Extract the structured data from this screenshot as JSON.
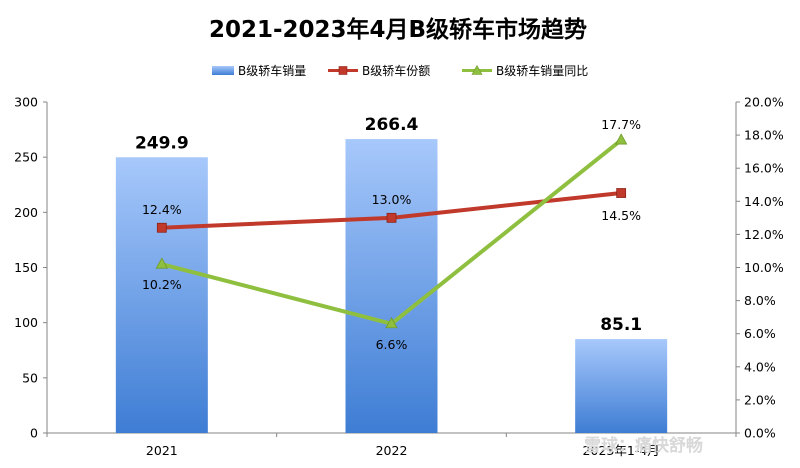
{
  "chart_data": {
    "type": "bar",
    "title": "2021-2023年4月B级轿车市场趋势",
    "categories": [
      "2021",
      "2022",
      "2023年1-4月"
    ],
    "series": [
      {
        "name": "B级轿车销量",
        "type": "bar",
        "axis": "left",
        "values": [
          249.9,
          266.4,
          85.1
        ],
        "labels": [
          "249.9",
          "266.4",
          "85.1"
        ],
        "color": "#5b8fe0"
      },
      {
        "name": "B级轿车份额",
        "type": "line",
        "axis": "right",
        "values": [
          12.4,
          13.0,
          14.5
        ],
        "labels": [
          "12.4%",
          "13.0%",
          "14.5%"
        ],
        "color": "#c0392b"
      },
      {
        "name": "B级轿车销量同比",
        "type": "line",
        "axis": "right",
        "values": [
          10.2,
          6.6,
          17.7
        ],
        "labels": [
          "10.2%",
          "6.6%",
          "17.7%"
        ],
        "color": "#8fbf3f"
      }
    ],
    "y_left": {
      "min": 0,
      "max": 300,
      "ticks": [
        "0",
        "50",
        "100",
        "150",
        "200",
        "250",
        "300"
      ]
    },
    "y_right": {
      "min": 0,
      "max": 20,
      "ticks": [
        "0.0%",
        "2.0%",
        "4.0%",
        "6.0%",
        "8.0%",
        "10.0%",
        "12.0%",
        "14.0%",
        "16.0%",
        "18.0%",
        "20.0%"
      ]
    },
    "legend_position": "top",
    "grid": false
  },
  "watermark": "雪球：痛快舒畅"
}
